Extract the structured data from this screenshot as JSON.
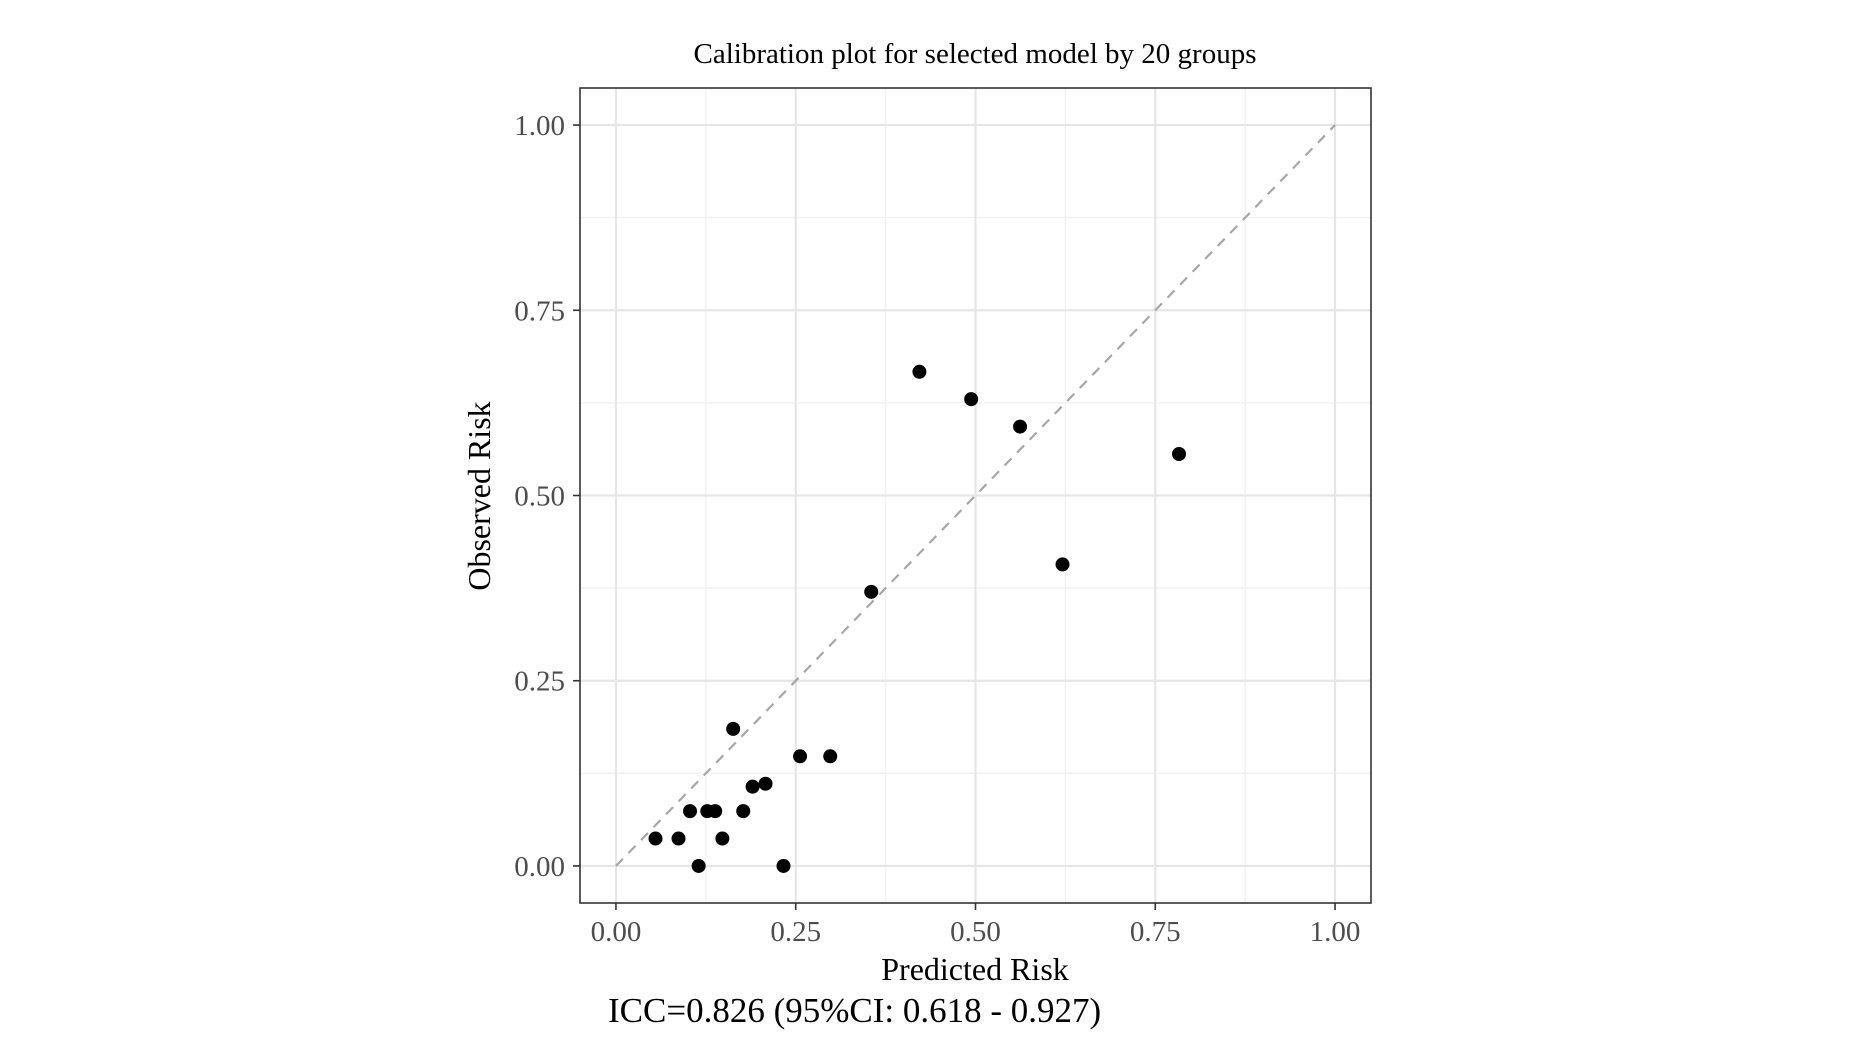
{
  "chart_data": {
    "type": "scatter",
    "title": "Calibration plot for selected model by 20 groups",
    "xlabel": "Predicted Risk",
    "ylabel": "Observed Risk",
    "xlim": [
      -0.05,
      1.05
    ],
    "ylim": [
      -0.05,
      1.05
    ],
    "x_ticks": [
      0.0,
      0.25,
      0.5,
      0.75,
      1.0
    ],
    "x_tick_labels": [
      "0.00",
      "0.25",
      "0.50",
      "0.75",
      "1.00"
    ],
    "y_ticks": [
      0.0,
      0.25,
      0.5,
      0.75,
      1.0
    ],
    "y_tick_labels": [
      "0.00",
      "0.25",
      "0.50",
      "0.75",
      "1.00"
    ],
    "grid": true,
    "reference_line": {
      "type": "diagonal",
      "from": [
        0,
        0
      ],
      "to": [
        1,
        1
      ],
      "style": "dashed",
      "color": "#a6a6a6"
    },
    "points": [
      {
        "x": 0.055,
        "y": 0.037
      },
      {
        "x": 0.087,
        "y": 0.037
      },
      {
        "x": 0.103,
        "y": 0.074
      },
      {
        "x": 0.115,
        "y": 0.0
      },
      {
        "x": 0.127,
        "y": 0.074
      },
      {
        "x": 0.138,
        "y": 0.074
      },
      {
        "x": 0.148,
        "y": 0.037
      },
      {
        "x": 0.163,
        "y": 0.185
      },
      {
        "x": 0.177,
        "y": 0.074
      },
      {
        "x": 0.19,
        "y": 0.107
      },
      {
        "x": 0.208,
        "y": 0.111
      },
      {
        "x": 0.233,
        "y": 0.0
      },
      {
        "x": 0.256,
        "y": 0.148
      },
      {
        "x": 0.298,
        "y": 0.148
      },
      {
        "x": 0.355,
        "y": 0.37
      },
      {
        "x": 0.422,
        "y": 0.667
      },
      {
        "x": 0.494,
        "y": 0.63
      },
      {
        "x": 0.562,
        "y": 0.593
      },
      {
        "x": 0.621,
        "y": 0.407
      },
      {
        "x": 0.783,
        "y": 0.556
      }
    ],
    "point_color": "#000000",
    "annotation": "ICC=0.826 (95%CI: 0.618 - 0.927)"
  }
}
